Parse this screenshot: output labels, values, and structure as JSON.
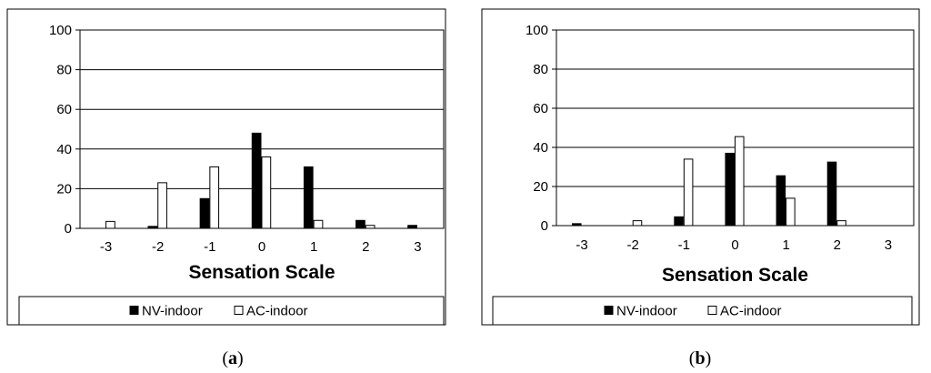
{
  "chart_data": [
    {
      "type": "bar",
      "panel_label": "a",
      "categories": [
        "-3",
        "-2",
        "-1",
        "0",
        "1",
        "2",
        "3"
      ],
      "series": [
        {
          "name": "NV-indoor",
          "color": "#000000",
          "values": [
            0,
            1,
            15,
            48,
            31,
            4,
            1.5
          ]
        },
        {
          "name": "AC-indoor",
          "color": "#ffffff",
          "values": [
            3.5,
            23,
            31,
            36,
            4,
            1.5,
            0
          ]
        }
      ],
      "xlabel": "Sensation Scale",
      "ylabel": "",
      "ylim": [
        0,
        100
      ],
      "yticks": [
        "0",
        "20",
        "40",
        "60",
        "80",
        "100"
      ],
      "grid": true,
      "legend": "bottom"
    },
    {
      "type": "bar",
      "panel_label": "b",
      "categories": [
        "-3",
        "-2",
        "-1",
        "0",
        "1",
        "2",
        "3"
      ],
      "series": [
        {
          "name": "NV-indoor",
          "color": "#000000",
          "values": [
            1,
            0,
            4.5,
            37,
            25.5,
            32.5,
            0
          ]
        },
        {
          "name": "AC-indoor",
          "color": "#ffffff",
          "values": [
            0,
            2.5,
            34,
            45.5,
            14,
            2.5,
            0
          ]
        }
      ],
      "xlabel": "Sensation Scale",
      "ylabel": "",
      "ylim": [
        0,
        100
      ],
      "yticks": [
        "0",
        "20",
        "40",
        "60",
        "80",
        "100"
      ],
      "grid": true,
      "legend": "bottom"
    }
  ]
}
